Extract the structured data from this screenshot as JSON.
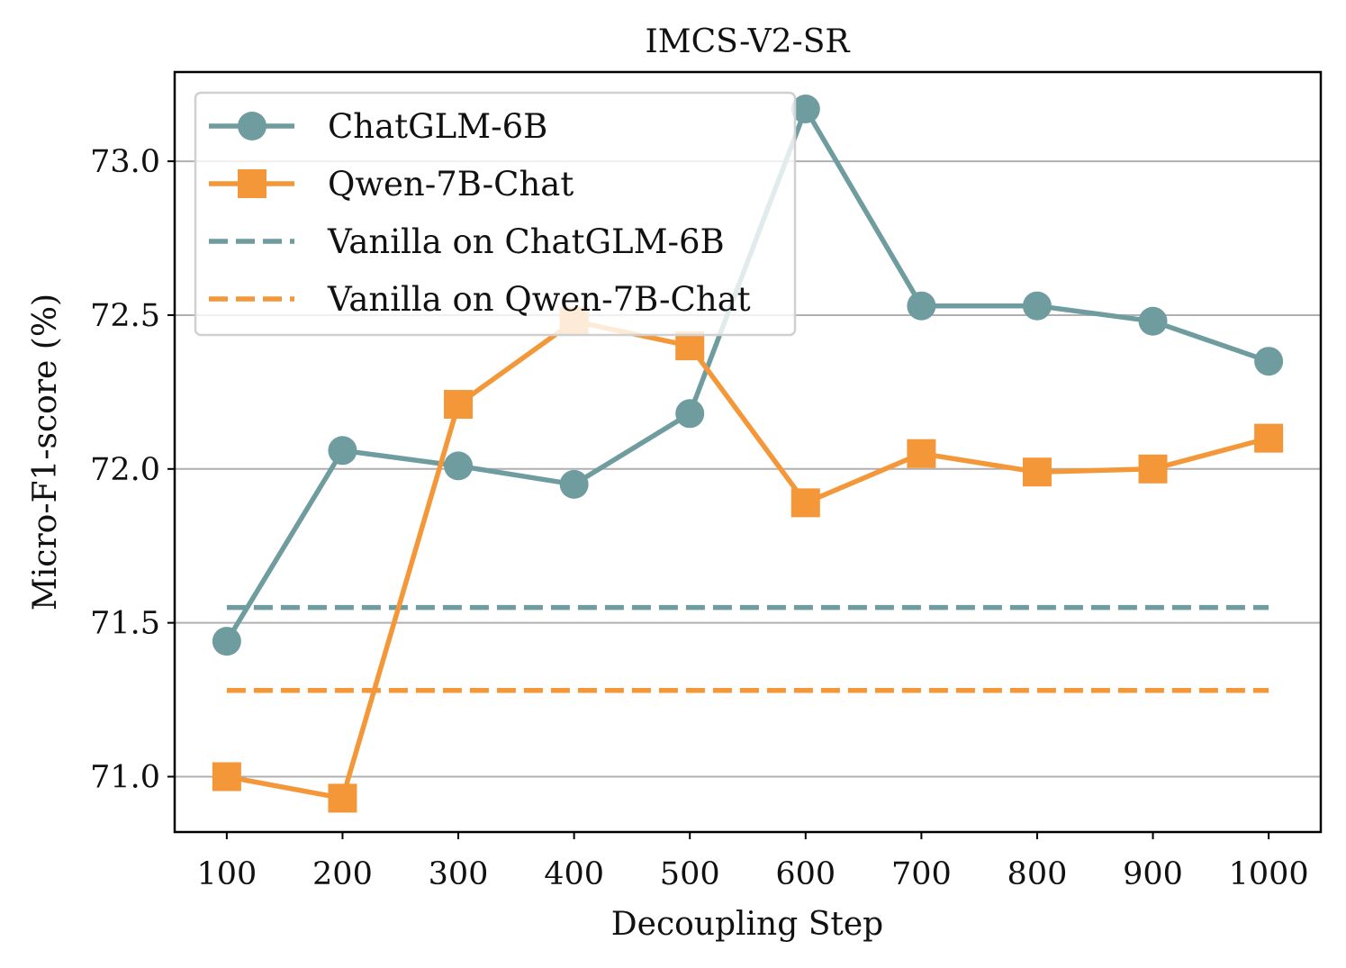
{
  "chart_data": {
    "type": "line",
    "title": "IMCS-V2-SR",
    "xlabel": "Decoupling Step",
    "ylabel": "Micro-F1-score (%)",
    "x": [
      100,
      200,
      300,
      400,
      500,
      600,
      700,
      800,
      900,
      1000
    ],
    "x_tick_labels": [
      "100",
      "200",
      "300",
      "400",
      "500",
      "600",
      "700",
      "800",
      "900",
      "1000"
    ],
    "y_ticks": [
      71.0,
      71.5,
      72.0,
      72.5,
      73.0
    ],
    "y_tick_labels": [
      "71.0",
      "71.5",
      "72.0",
      "72.5",
      "73.0"
    ],
    "xlim": [
      55,
      1045
    ],
    "ylim": [
      70.82,
      73.29
    ],
    "grid": "horizontal",
    "legend_position": "top-left",
    "series": [
      {
        "name": "ChatGLM-6B",
        "style": "solid",
        "marker": "circle",
        "color": "#6f9c9f",
        "values": [
          71.44,
          72.06,
          72.01,
          71.95,
          72.18,
          73.17,
          72.53,
          72.53,
          72.48,
          72.35
        ]
      },
      {
        "name": "Qwen-7B-Chat",
        "style": "solid",
        "marker": "square",
        "color": "#f39738",
        "values": [
          71.0,
          70.93,
          72.21,
          72.48,
          72.4,
          71.89,
          72.05,
          71.99,
          72.0,
          72.1
        ]
      },
      {
        "name": "Vanilla on ChatGLM-6B",
        "style": "dashed",
        "marker": "none",
        "color": "#6f9c9f",
        "values": [
          71.55,
          71.55,
          71.55,
          71.55,
          71.55,
          71.55,
          71.55,
          71.55,
          71.55,
          71.55
        ]
      },
      {
        "name": "Vanilla on Qwen-7B-Chat",
        "style": "dashed",
        "marker": "none",
        "color": "#f39738",
        "values": [
          71.28,
          71.28,
          71.28,
          71.28,
          71.28,
          71.28,
          71.28,
          71.28,
          71.28,
          71.28
        ]
      }
    ]
  }
}
